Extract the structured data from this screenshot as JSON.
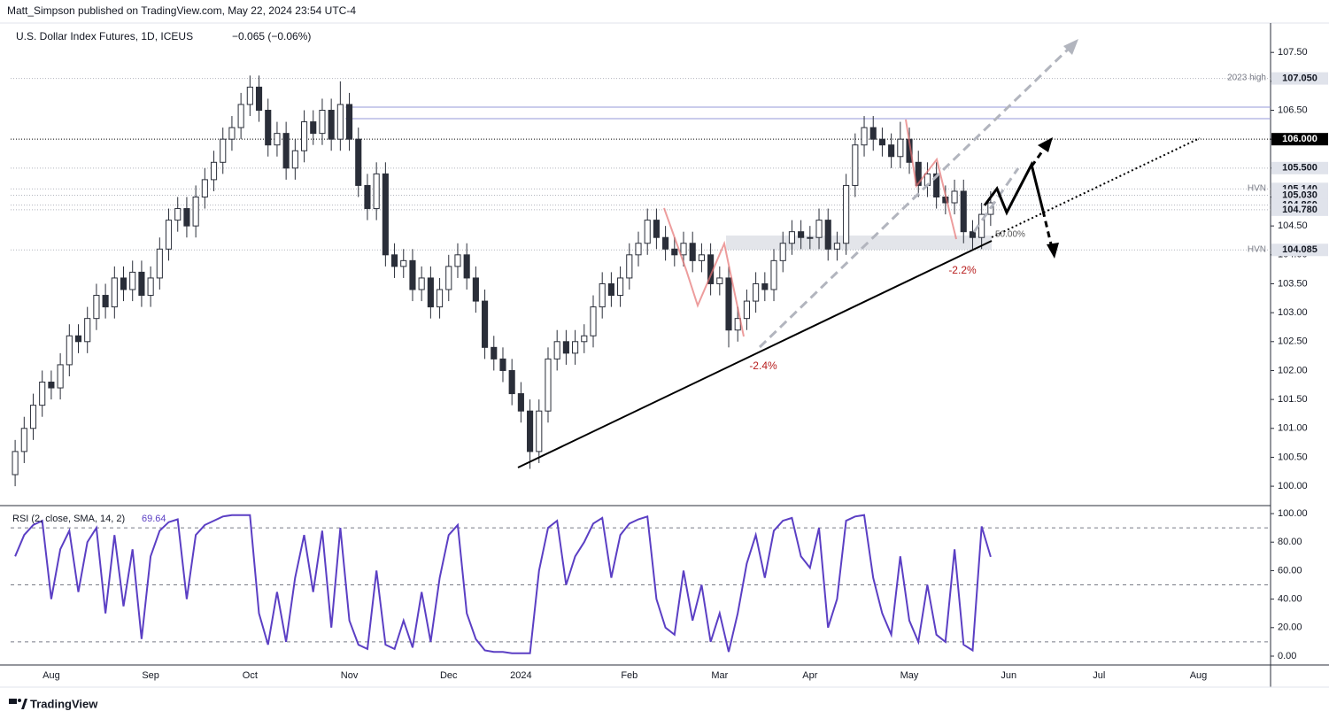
{
  "publisher_line": "Matt_Simpson published on TradingView.com, May 22, 2024 23:54 UTC-4",
  "footer": "TradingView",
  "annotations": {
    "high_2023": "2023 high",
    "hvn_upper": "HVN",
    "hvn_lower": "HVN",
    "fib": "50.00%",
    "drop_march": "-2.4%",
    "drop_may": "-2.2%"
  },
  "chart_data": [
    {
      "type": "candlestick",
      "title": "U.S. Dollar Index Futures, 1D, ICEUS",
      "change": "−0.065 (−0.06%)",
      "up_color": "#ffffff",
      "down_color": "#2a2e39",
      "wick_color": "#2a2e39",
      "categories": [
        null,
        null,
        null,
        null,
        "Aug",
        null,
        null,
        null,
        null,
        null,
        null,
        null,
        null,
        null,
        null,
        "Sep",
        null,
        null,
        null,
        null,
        null,
        null,
        null,
        null,
        null,
        null,
        "Oct",
        null,
        null,
        null,
        null,
        null,
        null,
        null,
        null,
        null,
        null,
        "Nov",
        null,
        null,
        null,
        null,
        null,
        null,
        null,
        null,
        null,
        null,
        "Dec",
        null,
        null,
        null,
        null,
        null,
        null,
        null,
        "2024",
        null,
        null,
        null,
        null,
        null,
        null,
        null,
        null,
        null,
        null,
        null,
        "Feb",
        null,
        null,
        null,
        null,
        null,
        null,
        null,
        null,
        null,
        "Mar",
        null,
        null,
        null,
        null,
        null,
        null,
        null,
        null,
        null,
        "Apr",
        null,
        null,
        null,
        null,
        null,
        null,
        null,
        null,
        null,
        null,
        "May",
        null,
        null,
        null,
        null,
        null,
        null,
        null,
        null,
        null,
        null,
        "Jun",
        null,
        null,
        null,
        null,
        null,
        null,
        null,
        null,
        null,
        "Jul",
        null,
        null,
        null,
        null,
        null,
        null,
        null,
        null,
        null,
        null,
        "Aug",
        null,
        null,
        null,
        null,
        null,
        null,
        null
      ],
      "open": [
        100.2,
        100.6,
        101.0,
        101.4,
        101.8,
        101.7,
        102.1,
        102.6,
        102.5,
        102.9,
        103.3,
        103.1,
        103.6,
        103.4,
        103.7,
        103.3,
        103.6,
        104.1,
        104.6,
        104.8,
        104.5,
        105.0,
        105.3,
        105.6,
        106.0,
        106.2,
        106.6,
        106.9,
        106.5,
        105.9,
        106.1,
        105.5,
        105.8,
        106.3,
        106.1,
        106.5,
        106.0,
        106.6,
        106.0,
        105.2,
        104.8,
        105.4,
        104.0,
        103.8,
        103.9,
        103.4,
        103.6,
        103.1,
        103.4,
        103.8,
        104.0,
        103.6,
        103.2,
        102.4,
        102.2,
        102.0,
        101.6,
        101.3,
        100.6,
        101.3,
        102.2,
        102.5,
        102.3,
        102.5,
        102.6,
        103.1,
        103.5,
        103.3,
        103.6,
        104.0,
        104.2,
        104.6,
        104.3,
        104.1,
        104.0,
        104.2,
        103.9,
        104.0,
        103.5,
        103.6,
        102.7,
        102.9,
        103.2,
        103.5,
        103.4,
        103.9,
        104.2,
        104.4,
        104.3,
        104.3,
        104.6,
        104.1,
        104.2,
        105.2,
        105.9,
        106.2,
        106.0,
        105.9,
        105.7,
        106.0,
        105.6,
        105.2,
        105.4,
        105.0,
        104.9,
        105.1,
        104.4,
        104.3,
        104.7,
        null,
        null,
        null,
        null,
        null,
        null,
        null,
        null,
        null,
        null,
        null,
        null,
        null,
        null,
        null,
        null,
        null,
        null,
        null,
        null,
        null,
        null,
        null,
        null,
        null,
        null,
        null,
        null,
        null,
        null
      ],
      "high": [
        100.8,
        101.2,
        101.6,
        102.0,
        102.0,
        102.3,
        102.8,
        102.8,
        103.1,
        103.5,
        103.5,
        103.8,
        103.8,
        103.9,
        103.9,
        103.8,
        104.3,
        104.8,
        105.0,
        105.0,
        105.2,
        105.5,
        105.8,
        106.2,
        106.4,
        106.8,
        107.1,
        107.1,
        106.7,
        106.3,
        106.3,
        106.0,
        106.5,
        106.5,
        106.7,
        106.7,
        107.0,
        106.8,
        106.2,
        105.4,
        105.6,
        105.6,
        104.2,
        104.1,
        104.1,
        103.8,
        103.8,
        103.6,
        104.0,
        104.2,
        104.2,
        103.8,
        103.4,
        102.6,
        102.4,
        102.2,
        101.8,
        101.5,
        101.5,
        102.4,
        102.7,
        102.7,
        102.7,
        102.8,
        103.3,
        103.7,
        103.7,
        103.8,
        104.2,
        104.4,
        104.8,
        104.8,
        104.5,
        104.3,
        104.4,
        104.4,
        104.2,
        104.2,
        103.8,
        103.8,
        103.1,
        103.4,
        103.7,
        103.7,
        104.1,
        104.4,
        104.6,
        104.6,
        104.5,
        104.8,
        104.8,
        104.4,
        105.4,
        106.1,
        106.4,
        106.4,
        106.2,
        106.1,
        106.3,
        106.2,
        105.8,
        105.6,
        105.6,
        105.2,
        105.3,
        105.3,
        104.6,
        104.9,
        105.1,
        null,
        null,
        null,
        null,
        null,
        null,
        null,
        null,
        null,
        null,
        null,
        null,
        null,
        null,
        null,
        null,
        null,
        null,
        null,
        null,
        null,
        null,
        null,
        null,
        null,
        null,
        null,
        null,
        null,
        null
      ],
      "low": [
        100.0,
        100.4,
        100.8,
        101.2,
        101.5,
        101.5,
        101.9,
        102.3,
        102.3,
        102.7,
        102.9,
        102.9,
        103.2,
        103.2,
        103.1,
        103.1,
        103.4,
        103.9,
        104.4,
        104.3,
        104.3,
        104.8,
        105.1,
        105.4,
        105.8,
        106.0,
        106.4,
        106.3,
        105.7,
        105.7,
        105.3,
        105.3,
        105.6,
        105.9,
        105.9,
        105.8,
        105.8,
        105.8,
        105.0,
        104.6,
        104.6,
        103.8,
        103.6,
        103.6,
        103.2,
        103.2,
        102.9,
        102.9,
        103.2,
        103.6,
        103.4,
        103.0,
        102.2,
        102.0,
        101.8,
        101.4,
        101.1,
        100.3,
        100.4,
        101.1,
        102.0,
        102.1,
        102.1,
        102.3,
        102.4,
        102.9,
        103.1,
        103.1,
        103.4,
        103.8,
        104.0,
        104.1,
        103.9,
        103.8,
        103.8,
        103.7,
        103.7,
        103.3,
        103.3,
        102.4,
        102.5,
        102.7,
        103.0,
        103.2,
        103.2,
        103.7,
        104.0,
        104.1,
        104.1,
        104.1,
        103.9,
        103.9,
        104.0,
        105.0,
        105.7,
        105.8,
        105.7,
        105.5,
        105.5,
        105.4,
        105.0,
        105.0,
        104.8,
        104.7,
        104.7,
        104.2,
        104.1,
        104.1,
        104.5,
        null,
        null,
        null,
        null,
        null,
        null,
        null,
        null,
        null,
        null,
        null,
        null,
        null,
        null,
        null,
        null,
        null,
        null,
        null,
        null,
        null,
        null,
        null,
        null,
        null,
        null,
        null,
        null,
        null,
        null
      ],
      "close": [
        100.6,
        101.0,
        101.4,
        101.8,
        101.7,
        102.1,
        102.6,
        102.5,
        102.9,
        103.3,
        103.1,
        103.6,
        103.4,
        103.7,
        103.3,
        103.6,
        104.1,
        104.6,
        104.8,
        104.5,
        105.0,
        105.3,
        105.6,
        106.0,
        106.2,
        106.6,
        106.9,
        106.5,
        105.9,
        106.1,
        105.5,
        105.8,
        106.3,
        106.1,
        106.5,
        106.0,
        106.6,
        106.0,
        105.2,
        104.8,
        105.4,
        104.0,
        103.8,
        103.9,
        103.4,
        103.6,
        103.1,
        103.4,
        103.8,
        104.0,
        103.6,
        103.2,
        102.4,
        102.2,
        102.0,
        101.6,
        101.3,
        100.6,
        101.3,
        102.2,
        102.5,
        102.3,
        102.5,
        102.6,
        103.1,
        103.5,
        103.3,
        103.6,
        104.0,
        104.2,
        104.6,
        104.3,
        104.1,
        104.0,
        104.2,
        103.9,
        104.0,
        103.5,
        103.6,
        102.7,
        102.9,
        103.2,
        103.5,
        103.4,
        103.9,
        104.2,
        104.4,
        104.3,
        104.3,
        104.6,
        104.1,
        104.2,
        105.2,
        105.9,
        106.2,
        106.0,
        105.9,
        105.7,
        106.0,
        105.6,
        105.2,
        105.4,
        105.0,
        104.9,
        105.1,
        104.4,
        104.3,
        104.7,
        104.9,
        null,
        null,
        null,
        null,
        null,
        null,
        null,
        null,
        null,
        null,
        null,
        null,
        null,
        null,
        null,
        null,
        null,
        null,
        null,
        null,
        null,
        null,
        null,
        null,
        null,
        null,
        null,
        null,
        null,
        null
      ],
      "ylim": [
        99.68,
        108.1
      ],
      "yticks": [
        {
          "value": 100,
          "label": "100.00"
        },
        {
          "value": 100.5,
          "label": "100.50"
        },
        {
          "value": 101,
          "label": "101.00"
        },
        {
          "value": 101.5,
          "label": "101.50"
        },
        {
          "value": 102,
          "label": "102.00"
        },
        {
          "value": 102.5,
          "label": "102.50"
        },
        {
          "value": 103,
          "label": "103.00"
        },
        {
          "value": 103.5,
          "label": "103.50"
        },
        {
          "value": 104,
          "label": "104.00"
        },
        {
          "value": 104.5,
          "label": "104.50"
        },
        {
          "value": 105,
          "label": "105.00"
        },
        {
          "value": 105.5,
          "label": "105.50"
        },
        {
          "value": 106,
          "label": "106.00"
        },
        {
          "value": 106.5,
          "label": "106.50"
        },
        {
          "value": 107,
          "label": "107.00"
        },
        {
          "value": 107.5,
          "label": "107.50"
        }
      ],
      "levels": [
        {
          "value": 107.05,
          "label": "107.050",
          "color": "#e0e3eb",
          "text_color": "#131722"
        },
        {
          "value": 106.0,
          "label": "106.000",
          "color": "#000000",
          "text_color": "#ffffff"
        },
        {
          "value": 105.5,
          "label": "105.500",
          "color": "#e0e3eb",
          "text_color": "#131722"
        },
        {
          "value": 105.14,
          "label": "105.140",
          "color": "#e0e3eb",
          "text_color": "#131722"
        },
        {
          "value": 105.03,
          "label": "105.030",
          "color": "#e0e3eb",
          "text_color": "#131722"
        },
        {
          "value": 104.86,
          "label": "104.860",
          "color": "#e0e3eb",
          "text_color": "#131722"
        },
        {
          "value": 104.78,
          "label": "104.780",
          "color": "#e0e3eb",
          "text_color": "#131722"
        },
        {
          "value": 104.085,
          "label": "104.085",
          "color": "#e0e3eb",
          "text_color": "#131722"
        }
      ]
    },
    {
      "type": "line",
      "title": "RSI (2, close, SMA, 14, 2)",
      "last_value": 69.64,
      "color": "#5b3fc4",
      "values": [
        70,
        85,
        92,
        95,
        40,
        75,
        88,
        45,
        80,
        90,
        30,
        85,
        35,
        75,
        12,
        70,
        88,
        94,
        96,
        40,
        85,
        92,
        95,
        98,
        99,
        99,
        99,
        30,
        8,
        45,
        10,
        55,
        85,
        45,
        88,
        20,
        90,
        25,
        8,
        5,
        60,
        8,
        5,
        25,
        6,
        45,
        10,
        55,
        85,
        92,
        30,
        12,
        4,
        3,
        3,
        2,
        2,
        2,
        60,
        90,
        95,
        50,
        70,
        80,
        93,
        97,
        55,
        85,
        93,
        96,
        98,
        40,
        20,
        15,
        60,
        25,
        50,
        10,
        30,
        3,
        30,
        65,
        85,
        55,
        88,
        95,
        97,
        70,
        62,
        90,
        20,
        40,
        95,
        98,
        99,
        55,
        30,
        15,
        70,
        25,
        10,
        50,
        15,
        10,
        75,
        8,
        4,
        91,
        69.64,
        null,
        null,
        null,
        null,
        null,
        null,
        null,
        null,
        null,
        null,
        null,
        null,
        null,
        null,
        null,
        null,
        null,
        null,
        null,
        null,
        null,
        null,
        null,
        null,
        null,
        null,
        null,
        null,
        null,
        null
      ],
      "reference_lines": [
        10,
        50,
        90
      ],
      "ylim": [
        -5.6,
        105
      ],
      "yticks": [
        {
          "value": 0,
          "label": "0.00"
        },
        {
          "value": 20,
          "label": "20.00"
        },
        {
          "value": 40,
          "label": "40.00"
        },
        {
          "value": 60,
          "label": "60.00"
        },
        {
          "value": 80,
          "label": "80.00"
        },
        {
          "value": 100,
          "label": "100.00"
        }
      ]
    }
  ]
}
